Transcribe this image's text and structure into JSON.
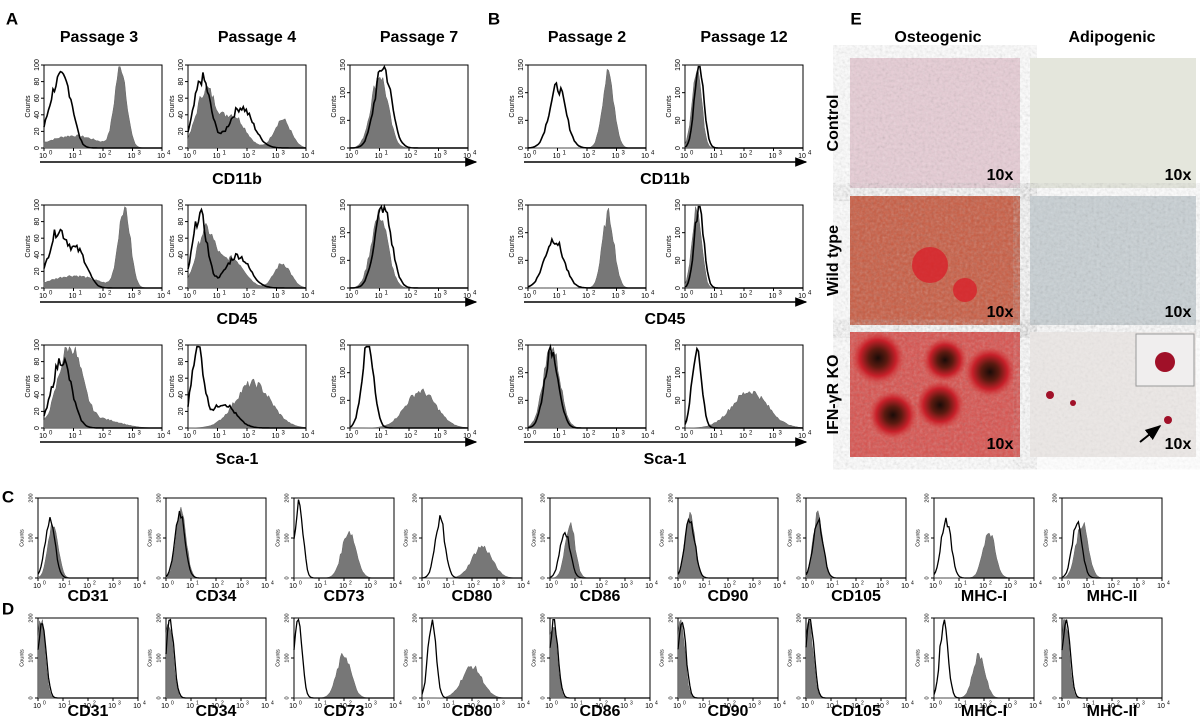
{
  "panel_labels": [
    "A",
    "B",
    "C",
    "D",
    "E"
  ],
  "panel_a": {
    "columns": [
      "Passage 3",
      "Passage 4",
      "Passage 7"
    ],
    "markers": [
      "CD11b",
      "CD45",
      "Sca-1"
    ]
  },
  "panel_b": {
    "columns": [
      "Passage 2",
      "Passage 12"
    ],
    "markers": [
      "CD11b",
      "CD45",
      "Sca-1"
    ]
  },
  "axis": {
    "y_label": "Counts",
    "x_base": "10",
    "x_exponents": [
      "0",
      "1",
      "2",
      "3",
      "4"
    ],
    "y_ticks_100": [
      "0",
      "20",
      "40",
      "60",
      "80",
      "100"
    ],
    "y_ticks_150": [
      "0",
      "50",
      "100",
      "150"
    ],
    "y_ticks_200": [
      "0",
      "100",
      "200"
    ]
  },
  "panel_cd": {
    "markers": [
      "CD31",
      "CD34",
      "CD73",
      "CD80",
      "CD86",
      "CD90",
      "CD105",
      "MHC-I",
      "MHC-II"
    ]
  },
  "panel_e": {
    "columns": [
      "Osteogenic",
      "Adipogenic"
    ],
    "rows": [
      "Control",
      "Wild type",
      "IFN-γR KO"
    ],
    "magnification": "10x"
  }
}
